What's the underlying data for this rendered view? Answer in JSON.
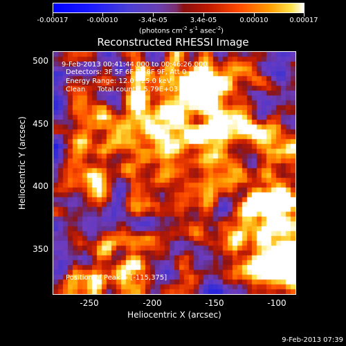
{
  "colorbar": {
    "ticks": [
      "-0.00017",
      "-0.00010",
      "-3.4e-05",
      "3.4e-05",
      "0.00010",
      "0.00017"
    ],
    "units_prefix": "(photons cm",
    "units_exp1": "-2",
    "units_mid1": " s",
    "units_exp2": "-1",
    "units_mid2": " asec",
    "units_exp3": "-2",
    "units_suffix": ")"
  },
  "title": "Reconstructed RHESSI Image",
  "info": {
    "time": "9-Feb-2013 00:41:44.000 to 00:46:26.000",
    "detectors": "Detectors: 3F 5F 6F 7F 8F 9F, Att 0",
    "energy": "Energy Range: 12.0 - 25.0 keV",
    "method": "Clean",
    "counts": "Total counts: 5.79E+03",
    "peak": "Position of Peak = [-115,375]"
  },
  "axes": {
    "xlabel": "Heliocentric X (arcsec)",
    "ylabel": "Heliocentric Y (arcsec)",
    "xticks": [
      "-250",
      "-200",
      "-150",
      "-100"
    ],
    "yticks": [
      "500",
      "450",
      "400",
      "350"
    ],
    "xlim": [
      -280,
      -87
    ],
    "ylim": [
      315,
      508
    ]
  },
  "timestamp": "9-Feb-2013 07:39",
  "colors": {
    "background": "#000000",
    "text": "#ffffff"
  }
}
